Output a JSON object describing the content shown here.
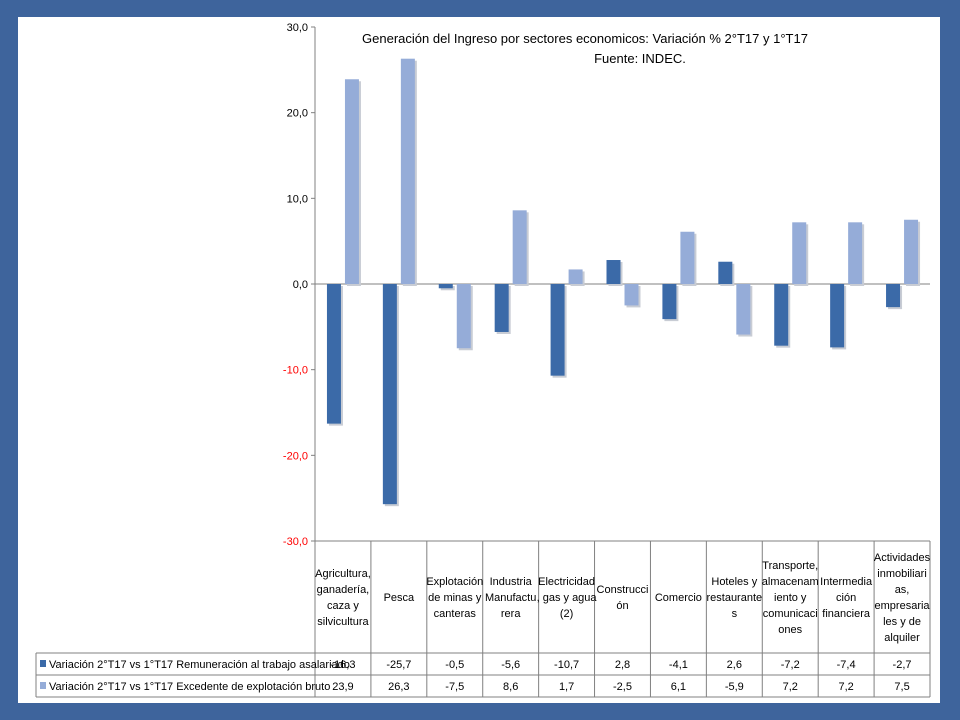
{
  "chart_data": {
    "type": "bar",
    "title": "Generación del Ingreso por sectores economicos: Variación % 2°T17 y 1°T17",
    "subtitle": "Fuente: INDEC.",
    "xlabel": "",
    "ylabel": "",
    "ylim": [
      -30,
      30
    ],
    "yticks": [
      30,
      20,
      10,
      0,
      -10,
      -20,
      -30
    ],
    "ytick_labels": [
      "30,0",
      "20,0",
      "10,0",
      "0,0",
      "-10,0",
      "-20,0",
      "-30,0"
    ],
    "negative_tick_color": "#ff0000",
    "grid": false,
    "legend": "bottom-table",
    "categories": [
      [
        "Agricultura,",
        "ganadería,",
        "caza y",
        "silvicultura"
      ],
      [
        "Pesca"
      ],
      [
        "Explotación",
        "de minas y",
        "canteras"
      ],
      [
        "Industria",
        "Manufactu",
        "rera"
      ],
      [
        "Electricidad",
        ", gas y agua",
        "(2)"
      ],
      [
        "Construcci",
        "ón"
      ],
      [
        "Comercio"
      ],
      [
        "Hoteles y",
        "restaurante",
        "s"
      ],
      [
        "Transporte,",
        "almacenam",
        "iento y",
        "comunicaci",
        "ones"
      ],
      [
        "Intermedia",
        "ción",
        "financiera"
      ],
      [
        "Actividades",
        "inmobiliari",
        "as,",
        "empresaria",
        "les y de",
        "alquiler"
      ]
    ],
    "series": [
      {
        "name": "Variación 2°T17 vs 1°T17 Remuneración al trabajo asalariado",
        "color": "#3b6aa8",
        "values": [
          -16.3,
          -25.7,
          -0.5,
          -5.6,
          -10.7,
          2.8,
          -4.1,
          2.6,
          -7.2,
          -7.4,
          -2.7
        ],
        "labels": [
          "-16,3",
          "-25,7",
          "-0,5",
          "-5,6",
          "-10,7",
          "2,8",
          "-4,1",
          "2,6",
          "-7,2",
          "-7,4",
          "-2,7"
        ]
      },
      {
        "name": "Variación 2°T17 vs 1°T17 Excedente  de explotación bruto",
        "color": "#95acd8",
        "values": [
          23.9,
          26.3,
          -7.5,
          8.6,
          1.7,
          -2.5,
          6.1,
          -5.9,
          7.2,
          7.2,
          7.5
        ],
        "labels": [
          "23,9",
          "26,3",
          "-7,5",
          "8,6",
          "1,7",
          "-2,5",
          "6,1",
          "-5,9",
          "7,2",
          "7,2",
          "7,5"
        ]
      }
    ]
  }
}
